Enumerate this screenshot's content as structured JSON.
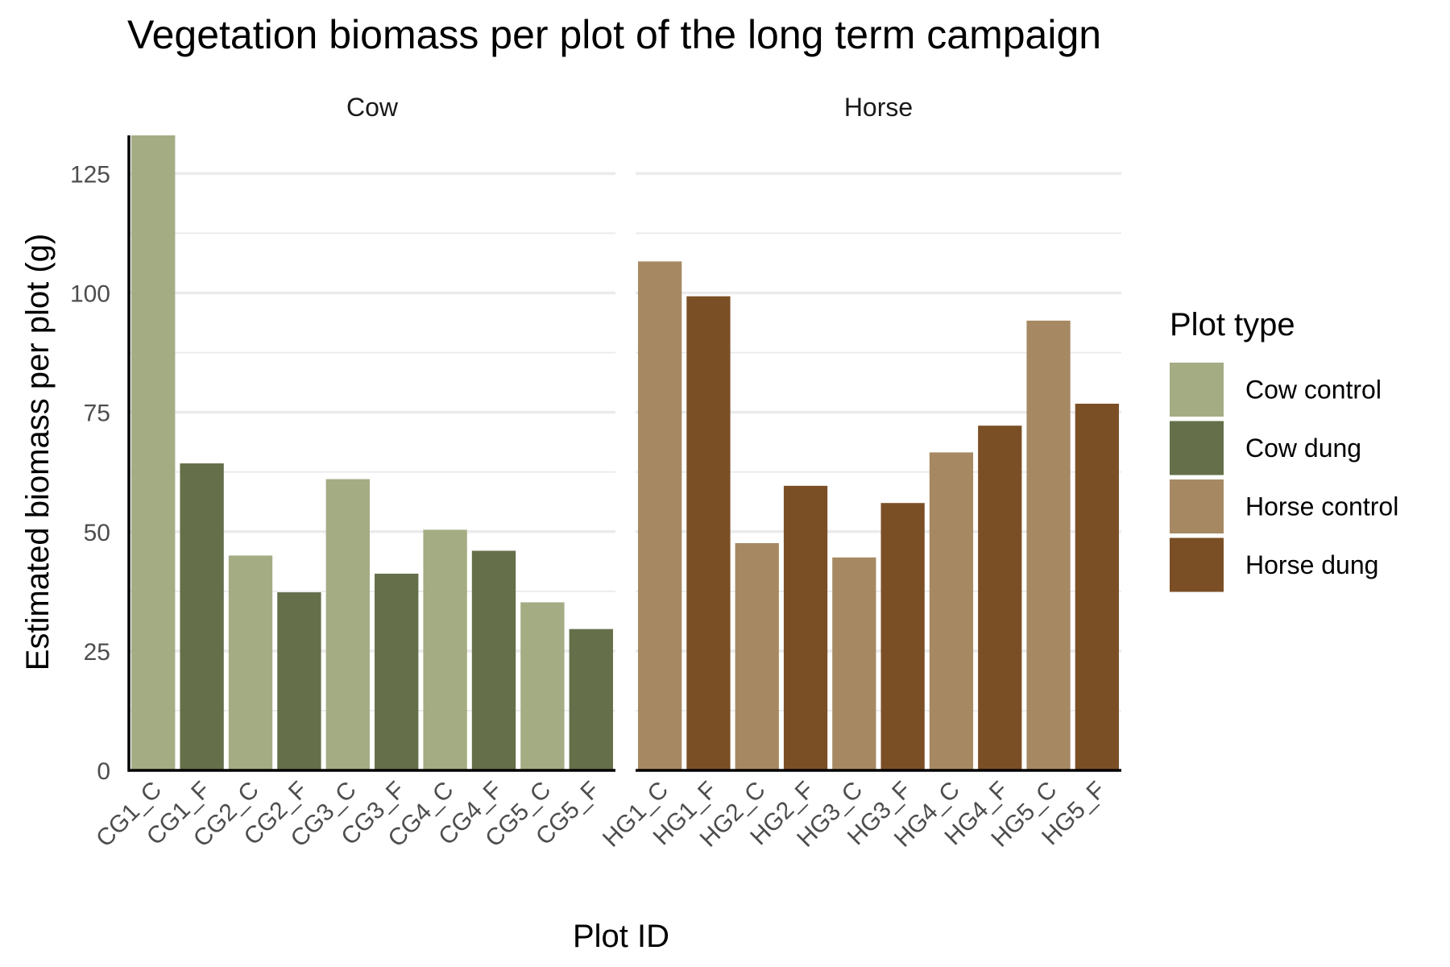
{
  "chart_data": {
    "type": "bar",
    "title": "Vegetation biomass per plot of the long term campaign",
    "xlabel": "Plot ID",
    "ylabel": "Estimated biomass per plot (g)",
    "ylim": [
      0,
      133
    ],
    "yticks": [
      0,
      25,
      50,
      75,
      100,
      125
    ],
    "grid": true,
    "legend": {
      "title": "Plot type",
      "position": "right",
      "entries": [
        {
          "label": "Cow control",
          "color": "#a4ac84"
        },
        {
          "label": "Cow dung",
          "color": "#656f4a"
        },
        {
          "label": "Horse control",
          "color": "#a68963"
        },
        {
          "label": "Horse dung",
          "color": "#7b4f25"
        }
      ]
    },
    "facets": [
      {
        "name": "Cow",
        "categories": [
          "CG1_C",
          "CG1_F",
          "CG2_C",
          "CG2_F",
          "CG3_C",
          "CG3_F",
          "CG4_C",
          "CG4_F",
          "CG5_C",
          "CG5_F"
        ],
        "values": [
          133,
          64.3,
          45,
          37.3,
          61,
          41.2,
          50.4,
          46,
          35.2,
          29.6
        ],
        "types": [
          "Cow control",
          "Cow dung",
          "Cow control",
          "Cow dung",
          "Cow control",
          "Cow dung",
          "Cow control",
          "Cow dung",
          "Cow control",
          "Cow dung"
        ]
      },
      {
        "name": "Horse",
        "categories": [
          "HG1_C",
          "HG1_F",
          "HG2_C",
          "HG2_F",
          "HG3_C",
          "HG3_F",
          "HG4_C",
          "HG4_F",
          "HG5_C",
          "HG5_F"
        ],
        "values": [
          106.6,
          99.3,
          47.6,
          59.6,
          44.6,
          56,
          66.6,
          72.2,
          94.2,
          76.8
        ],
        "types": [
          "Horse control",
          "Horse dung",
          "Horse control",
          "Horse dung",
          "Horse control",
          "Horse dung",
          "Horse control",
          "Horse dung",
          "Horse control",
          "Horse dung"
        ]
      }
    ]
  }
}
